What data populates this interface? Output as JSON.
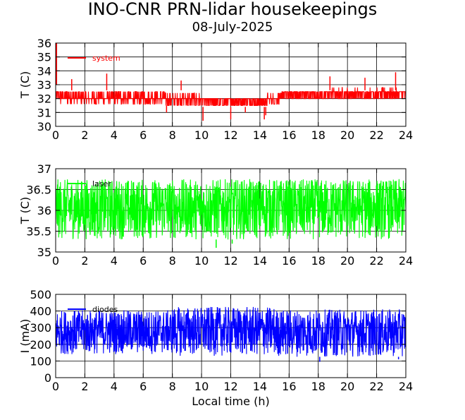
{
  "title": "INO-CNR PRN-lidar housekeepings",
  "subtitle": "08-July-2025",
  "chart_data": [
    {
      "type": "line",
      "ylabel": "T (C)",
      "xlabel": "",
      "xlim": [
        0,
        24
      ],
      "ylim": [
        30,
        36
      ],
      "xticks": [
        "0",
        "2",
        "4",
        "6",
        "8",
        "10",
        "12",
        "14",
        "16",
        "18",
        "20",
        "22",
        "24"
      ],
      "yticks": [
        "30",
        "31",
        "32",
        "33",
        "34",
        "35",
        "36"
      ],
      "grid": true,
      "legend_position": "top-left",
      "series": [
        {
          "name": "system",
          "color": "#ff0000",
          "segments": [
            {
              "x0": 0.0,
              "x1": 1.5,
              "low": 31.6,
              "high": 32.6
            },
            {
              "x0": 1.5,
              "x1": 7.5,
              "low": 31.6,
              "high": 32.5
            },
            {
              "x0": 7.5,
              "x1": 10.0,
              "low": 31.5,
              "high": 32.4
            },
            {
              "x0": 10.0,
              "x1": 14.5,
              "low": 31.4,
              "high": 32.2
            },
            {
              "x0": 14.5,
              "x1": 15.5,
              "low": 31.6,
              "high": 32.4
            },
            {
              "x0": 15.5,
              "x1": 18.5,
              "low": 31.8,
              "high": 32.7
            },
            {
              "x0": 18.5,
              "x1": 24.0,
              "low": 31.9,
              "high": 32.8
            }
          ],
          "start_spike": [
            33.0,
            36.0
          ],
          "spikes_up": [
            [
              1.1,
              33.4
            ],
            [
              3.5,
              33.8
            ],
            [
              8.6,
              33.3
            ],
            [
              18.8,
              33.6
            ],
            [
              21.2,
              33.5
            ],
            [
              23.3,
              33.9
            ]
          ],
          "spikes_down": [
            [
              7.6,
              31.0
            ],
            [
              10.1,
              30.4
            ],
            [
              12.0,
              30.5
            ],
            [
              13.0,
              31.0
            ],
            [
              14.3,
              30.5
            ],
            [
              14.4,
              30.8
            ]
          ]
        }
      ]
    },
    {
      "type": "line",
      "ylabel": "T (C)",
      "xlabel": "",
      "xlim": [
        0,
        24
      ],
      "ylim": [
        35,
        37
      ],
      "xticks": [
        "0",
        "2",
        "4",
        "6",
        "8",
        "10",
        "12",
        "14",
        "16",
        "18",
        "20",
        "22",
        "24"
      ],
      "yticks": [
        "35",
        "35.5",
        "36",
        "36.5",
        "37"
      ],
      "grid": true,
      "legend_position": "top-left",
      "series": [
        {
          "name": "laser",
          "color": "#00ff00",
          "low": 35.3,
          "high": 36.75,
          "spikes_down": [
            [
              11.0,
              35.1
            ],
            [
              12.1,
              35.2
            ]
          ]
        }
      ]
    },
    {
      "type": "line",
      "ylabel": "I (mA)",
      "xlabel": "Local time (h)",
      "xlim": [
        0,
        24
      ],
      "ylim": [
        0,
        500
      ],
      "xticks": [
        "0",
        "2",
        "4",
        "6",
        "8",
        "10",
        "12",
        "14",
        "16",
        "18",
        "20",
        "22",
        "24"
      ],
      "yticks": [
        "0",
        "100",
        "200",
        "300",
        "400",
        "500"
      ],
      "grid": true,
      "legend_position": "top-left",
      "series": [
        {
          "name": "diodes",
          "color": "#0000ff",
          "segments": [
            {
              "x0": 0.0,
              "x1": 8.0,
              "low": 140,
              "high": 405
            },
            {
              "x0": 8.0,
              "x1": 15.0,
              "low": 130,
              "high": 425
            },
            {
              "x0": 15.0,
              "x1": 24.0,
              "low": 125,
              "high": 410
            }
          ],
          "spikes_down": [
            [
              18.1,
              95
            ],
            [
              23.5,
              110
            ]
          ]
        }
      ]
    }
  ]
}
